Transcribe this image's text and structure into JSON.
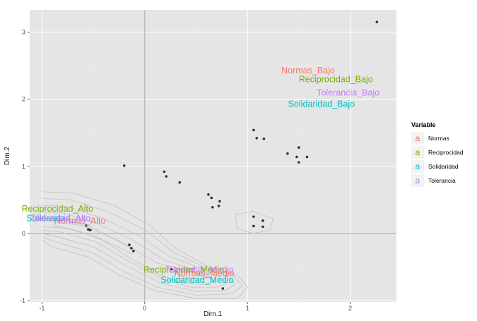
{
  "colors": {
    "panel": "#e5e5e5",
    "grid_major": "#ffffff",
    "zero_line": "#a3a3a3",
    "point": "#333333",
    "contour": "#c2c2c2",
    "legend_key_bg": "#f2f2f2",
    "series": {
      "Normas": "#f8766d",
      "Reciprocidad": "#7cae00",
      "Solidaridad": "#00bfc4",
      "Tolerancia": "#c77cff"
    }
  },
  "chart_data": {
    "type": "scatter",
    "title": "",
    "xlabel": "Dim.1",
    "ylabel": "Dim.2",
    "xlim": [
      -1.12,
      2.45
    ],
    "ylim": [
      -1.02,
      3.33
    ],
    "xticks": [
      {
        "value": -1,
        "label": "-1"
      },
      {
        "value": 0,
        "label": "0"
      },
      {
        "value": 1,
        "label": "1"
      },
      {
        "value": 2,
        "label": "2"
      }
    ],
    "yticks": [
      {
        "value": -1,
        "label": "-1"
      },
      {
        "value": 0,
        "label": "0"
      },
      {
        "value": 1,
        "label": "1"
      },
      {
        "value": 2,
        "label": "2"
      },
      {
        "value": 3,
        "label": "3"
      }
    ],
    "points": [
      {
        "x": 2.26,
        "y": 3.15
      },
      {
        "x": 1.06,
        "y": 1.54
      },
      {
        "x": 1.09,
        "y": 1.42
      },
      {
        "x": 1.16,
        "y": 1.41
      },
      {
        "x": 1.39,
        "y": 1.19
      },
      {
        "x": 1.48,
        "y": 1.14
      },
      {
        "x": 1.5,
        "y": 1.06
      },
      {
        "x": 1.58,
        "y": 1.14
      },
      {
        "x": 1.5,
        "y": 1.28
      },
      {
        "x": -0.2,
        "y": 1.01
      },
      {
        "x": 0.19,
        "y": 0.92
      },
      {
        "x": 0.21,
        "y": 0.85
      },
      {
        "x": 0.34,
        "y": 0.76
      },
      {
        "x": 0.62,
        "y": 0.58
      },
      {
        "x": 0.65,
        "y": 0.53
      },
      {
        "x": 0.73,
        "y": 0.48
      },
      {
        "x": 0.66,
        "y": 0.39
      },
      {
        "x": 0.72,
        "y": 0.41
      },
      {
        "x": 1.06,
        "y": 0.25
      },
      {
        "x": 1.15,
        "y": 0.19
      },
      {
        "x": 1.06,
        "y": 0.11
      },
      {
        "x": 1.15,
        "y": 0.1
      },
      {
        "x": -0.57,
        "y": 0.12
      },
      {
        "x": -0.55,
        "y": 0.06
      },
      {
        "x": -0.53,
        "y": 0.05
      },
      {
        "x": -0.15,
        "y": -0.17
      },
      {
        "x": -0.13,
        "y": -0.22
      },
      {
        "x": -0.11,
        "y": -0.26
      },
      {
        "x": 0.26,
        "y": -0.53
      },
      {
        "x": 0.3,
        "y": -0.56
      },
      {
        "x": 0.76,
        "y": -0.82
      }
    ],
    "labels": [
      {
        "text": "Normas_Bajo",
        "variable": "Normas",
        "x": 1.59,
        "y": 2.42
      },
      {
        "text": "Reciprocidad_Bajo",
        "variable": "Reciprocidad",
        "x": 1.86,
        "y": 2.29
      },
      {
        "text": "Tolerancia_Bajo",
        "variable": "Tolerancia",
        "x": 1.98,
        "y": 2.09
      },
      {
        "text": "Solidaridad_Bajo",
        "variable": "Solidaridad",
        "x": 1.72,
        "y": 1.92
      },
      {
        "text": "Normas_Alto",
        "variable": "Normas",
        "x": -0.63,
        "y": 0.18
      },
      {
        "text": "Reciprocidad_Alto",
        "variable": "Reciprocidad",
        "x": -0.85,
        "y": 0.36
      },
      {
        "text": "Solidaridad_Alto",
        "variable": "Solidaridad",
        "x": -0.84,
        "y": 0.22
      },
      {
        "text": "Tolerancia_Alto",
        "variable": "Tolerancia",
        "x": -0.82,
        "y": 0.22
      },
      {
        "text": "Reciprocidad_Medio",
        "variable": "Reciprocidad",
        "x": 0.38,
        "y": -0.55
      },
      {
        "text": "Tolerancia_Medio",
        "variable": "Tolerancia",
        "x": 0.53,
        "y": -0.55
      },
      {
        "text": "Normas_Medio",
        "variable": "Normas",
        "x": 0.58,
        "y": -0.6
      },
      {
        "text": "Solidaridad_Medio",
        "variable": "Solidaridad",
        "x": 0.51,
        "y": -0.7
      }
    ],
    "legend": {
      "title": "Variable",
      "position": "right",
      "key_glyph": "a",
      "entries": [
        "Normas",
        "Reciprocidad",
        "Solidaridad",
        "Tolerancia"
      ]
    },
    "density_contours": {
      "paths": [
        [
          [
            -1.0,
            0.62
          ],
          [
            -0.7,
            0.6
          ],
          [
            -0.3,
            0.42
          ],
          [
            0.05,
            0.12
          ],
          [
            0.3,
            -0.22
          ],
          [
            0.6,
            -0.48
          ],
          [
            0.9,
            -0.62
          ],
          [
            1.0,
            -0.8
          ],
          [
            0.9,
            -0.97
          ],
          [
            0.5,
            -0.97
          ],
          [
            0.1,
            -0.85
          ],
          [
            -0.25,
            -0.62
          ],
          [
            -0.55,
            -0.35
          ],
          [
            -0.9,
            -0.2
          ],
          [
            -1.0,
            -0.1
          ]
        ],
        [
          [
            -1.0,
            0.52
          ],
          [
            -0.72,
            0.5
          ],
          [
            -0.35,
            0.32
          ],
          [
            0.02,
            0.04
          ],
          [
            0.28,
            -0.28
          ],
          [
            0.58,
            -0.5
          ],
          [
            0.86,
            -0.62
          ],
          [
            0.95,
            -0.78
          ],
          [
            0.85,
            -0.9
          ],
          [
            0.5,
            -0.92
          ],
          [
            0.12,
            -0.8
          ],
          [
            -0.22,
            -0.55
          ],
          [
            -0.52,
            -0.28
          ],
          [
            -0.88,
            -0.12
          ],
          [
            -1.0,
            -0.05
          ]
        ],
        [
          [
            -1.0,
            0.42
          ],
          [
            -0.75,
            0.4
          ],
          [
            -0.4,
            0.22
          ],
          [
            -0.05,
            -0.04
          ],
          [
            0.24,
            -0.34
          ],
          [
            0.55,
            -0.52
          ],
          [
            0.8,
            -0.62
          ],
          [
            0.88,
            -0.76
          ],
          [
            0.78,
            -0.85
          ],
          [
            0.48,
            -0.86
          ],
          [
            0.16,
            -0.74
          ],
          [
            -0.18,
            -0.48
          ],
          [
            -0.5,
            -0.2
          ],
          [
            -0.85,
            -0.05
          ],
          [
            -1.0,
            0.0
          ]
        ],
        [
          [
            -1.0,
            0.32
          ],
          [
            -0.78,
            0.3
          ],
          [
            -0.45,
            0.14
          ],
          [
            -0.12,
            -0.1
          ],
          [
            0.2,
            -0.4
          ],
          [
            0.5,
            -0.55
          ],
          [
            0.72,
            -0.64
          ],
          [
            0.8,
            -0.74
          ],
          [
            0.7,
            -0.8
          ],
          [
            0.45,
            -0.8
          ],
          [
            0.18,
            -0.68
          ],
          [
            -0.15,
            -0.42
          ],
          [
            -0.48,
            -0.12
          ],
          [
            -0.82,
            0.02
          ],
          [
            -1.0,
            0.05
          ]
        ],
        [
          [
            -1.0,
            0.22
          ],
          [
            -0.8,
            0.22
          ],
          [
            -0.5,
            0.08
          ],
          [
            -0.2,
            -0.15
          ],
          [
            0.12,
            -0.44
          ],
          [
            0.42,
            -0.56
          ],
          [
            0.62,
            -0.64
          ],
          [
            0.68,
            -0.72
          ],
          [
            0.58,
            -0.76
          ],
          [
            0.38,
            -0.74
          ],
          [
            0.15,
            -0.62
          ],
          [
            -0.15,
            -0.36
          ],
          [
            -0.45,
            -0.06
          ],
          [
            -0.78,
            0.08
          ],
          [
            -1.0,
            0.1
          ]
        ],
        [
          [
            -0.88,
            0.17
          ],
          [
            -0.62,
            0.12
          ],
          [
            -0.35,
            -0.04
          ],
          [
            -0.1,
            -0.24
          ],
          [
            -0.12,
            -0.3
          ],
          [
            -0.38,
            -0.12
          ],
          [
            -0.65,
            0.04
          ],
          [
            -0.88,
            0.12
          ],
          [
            -0.88,
            0.17
          ]
        ],
        [
          [
            0.25,
            -0.5
          ],
          [
            0.45,
            -0.55
          ],
          [
            0.62,
            -0.62
          ],
          [
            0.58,
            -0.68
          ],
          [
            0.4,
            -0.66
          ],
          [
            0.26,
            -0.58
          ],
          [
            0.25,
            -0.5
          ]
        ],
        [
          [
            0.88,
            0.28
          ],
          [
            1.05,
            0.33
          ],
          [
            1.25,
            0.22
          ],
          [
            1.22,
            0.05
          ],
          [
            1.05,
            0.0
          ],
          [
            0.9,
            0.08
          ],
          [
            0.88,
            0.28
          ]
        ]
      ]
    }
  }
}
